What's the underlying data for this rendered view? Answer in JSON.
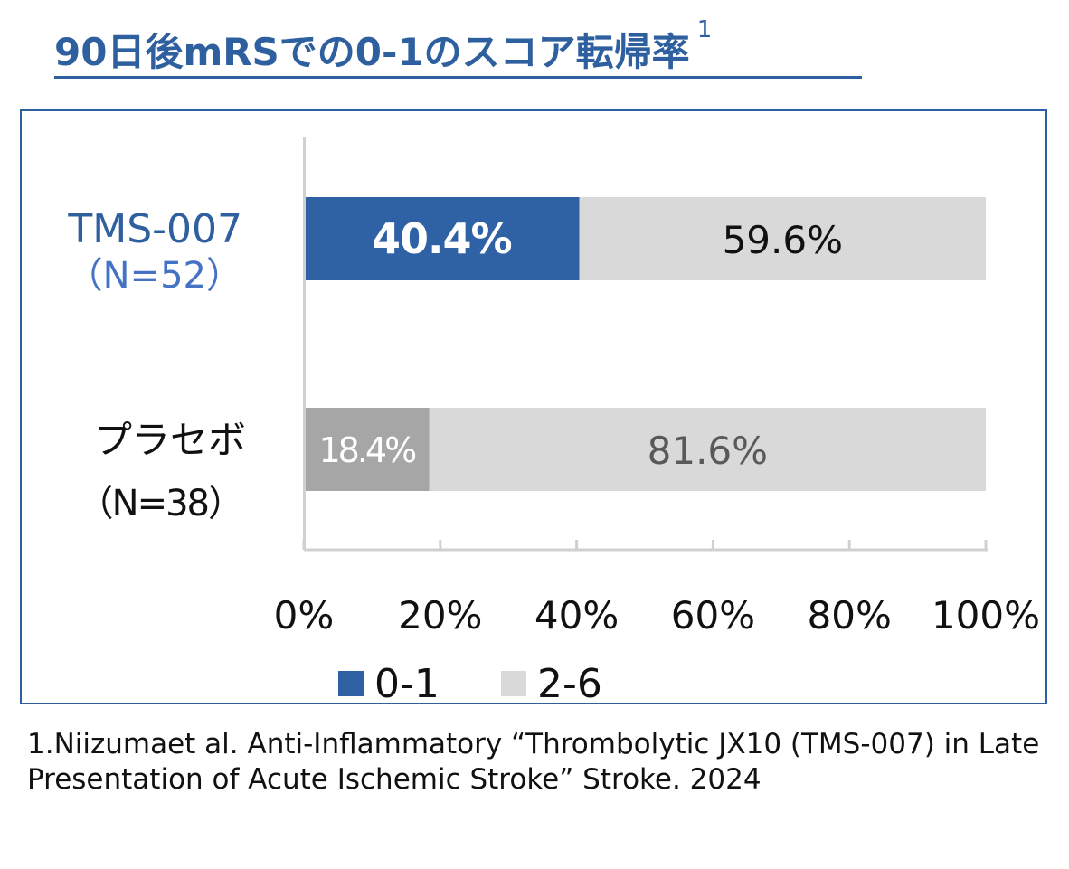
{
  "header": {
    "title": "90日後mRSでの0-1のスコア転帰率",
    "title_superscript": "1"
  },
  "chart_data": {
    "type": "bar",
    "orientation": "horizontal",
    "stacked": true,
    "categories": [
      {
        "name": "TMS-007",
        "subtitle": "（N=52）"
      },
      {
        "name": "プラセボ",
        "subtitle": "（N=38）"
      }
    ],
    "series": [
      {
        "name": "0-1",
        "values": [
          40.4,
          18.4
        ],
        "labels": [
          "40.4%",
          "18.4%"
        ]
      },
      {
        "name": "2-6",
        "values": [
          59.6,
          81.6
        ],
        "labels": [
          "59.6%",
          "81.6%"
        ]
      }
    ],
    "xlim": [
      0,
      100
    ],
    "xticks": [
      0,
      20,
      40,
      60,
      80,
      100
    ],
    "xtick_labels": [
      "0%",
      "20%",
      "40%",
      "60%",
      "80%",
      "100%"
    ],
    "legend": {
      "placement": "bottom",
      "entries": [
        "0-1",
        "2-6"
      ]
    },
    "grid": false,
    "colors": {
      "treatment_0_1": "#2e62a4",
      "placebo_0_1": "#a6a6a6",
      "rest_2_6": "#d9d9d9",
      "treatment_label": "#2e5f9e",
      "treatment_subtitle": "#4472c4",
      "axis": "#d0d0d0"
    }
  },
  "footnote": {
    "text": "1.Niizumaet al. Anti-Inflammatory “Thrombolytic JX10 (TMS-007) in Late Presentation of Acute Ischemic Stroke” Stroke. 2024"
  }
}
